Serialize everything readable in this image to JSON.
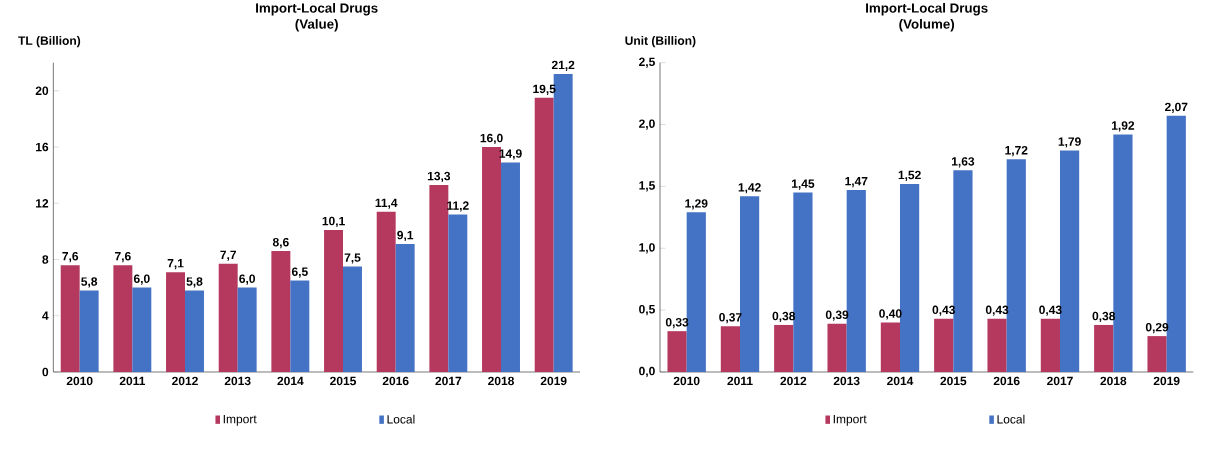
{
  "chart_data": [
    {
      "type": "bar",
      "title": "Import-Local Drugs",
      "subtitle": "(Value)",
      "ylabel": "TL (Billion)",
      "categories": [
        "2010",
        "2011",
        "2012",
        "2013",
        "2014",
        "2015",
        "2016",
        "2017",
        "2018",
        "2019"
      ],
      "series": [
        {
          "name": "Import",
          "color": "#b5395f",
          "values": [
            7.6,
            7.6,
            7.1,
            7.7,
            8.6,
            10.1,
            11.4,
            13.3,
            16.0,
            19.5
          ],
          "value_labels": [
            "7,6",
            "7,6",
            "7,1",
            "7,7",
            "8,6",
            "10,1",
            "11,4",
            "13,3",
            "16,0",
            "19,5"
          ]
        },
        {
          "name": "Local",
          "color": "#4472c4",
          "values": [
            5.8,
            6.0,
            5.8,
            6.0,
            6.5,
            7.5,
            9.1,
            11.2,
            14.9,
            21.2
          ],
          "value_labels": [
            "5,8",
            "6,0",
            "5,8",
            "6,0",
            "6,5",
            "7,5",
            "9,1",
            "11,2",
            "14,9",
            "21,2"
          ]
        }
      ],
      "ylim": [
        0,
        22
      ],
      "yticks": [
        0,
        4,
        8,
        12,
        16,
        20
      ],
      "legend": "bottom",
      "grid": false
    },
    {
      "type": "bar",
      "title": "Import-Local Drugs",
      "subtitle": "(Volume)",
      "ylabel": "Unit (Billion)",
      "categories": [
        "2010",
        "2011",
        "2012",
        "2013",
        "2014",
        "2015",
        "2016",
        "2017",
        "2018",
        "2019"
      ],
      "series": [
        {
          "name": "Import",
          "color": "#b5395f",
          "values": [
            0.33,
            0.37,
            0.38,
            0.39,
            0.4,
            0.43,
            0.43,
            0.43,
            0.38,
            0.29
          ],
          "value_labels": [
            "0,33",
            "0,37",
            "0,38",
            "0,39",
            "0,40",
            "0,43",
            "0,43",
            "0,43",
            "0,38",
            "0,29"
          ]
        },
        {
          "name": "Local",
          "color": "#4472c4",
          "values": [
            1.29,
            1.42,
            1.45,
            1.47,
            1.52,
            1.63,
            1.72,
            1.79,
            1.92,
            2.07
          ],
          "value_labels": [
            "1,29",
            "1,42",
            "1,45",
            "1,47",
            "1,52",
            "1,63",
            "1,72",
            "1,79",
            "1,92",
            "2,07"
          ]
        }
      ],
      "ylim": [
        0,
        2.5
      ],
      "yticks": [
        {
          "value": 0,
          "label": "0,0"
        },
        {
          "value": 0.5,
          "label": "0,5"
        },
        {
          "value": 1,
          "label": "1,0"
        },
        {
          "value": 1.5,
          "label": "1,5"
        },
        {
          "value": 2,
          "label": "2,0"
        },
        {
          "value": 2.5,
          "label": "2,5"
        }
      ],
      "legend": "bottom",
      "grid": false
    }
  ]
}
